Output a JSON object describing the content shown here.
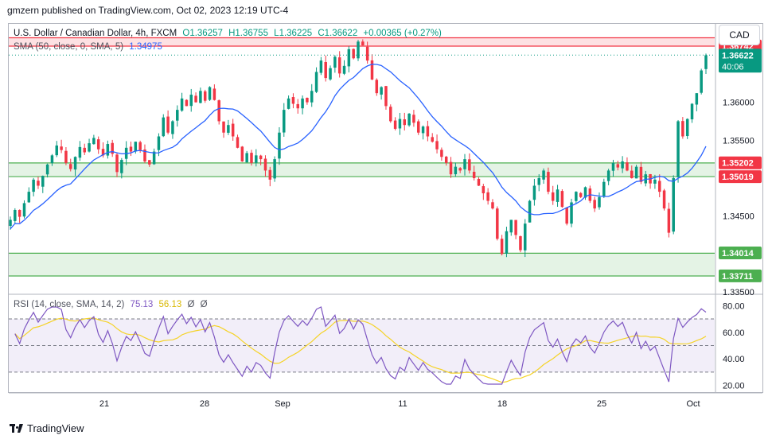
{
  "header": {
    "published_by": "gmzern published on TradingView.com, Oct 02, 2023 12:19 UTC-4"
  },
  "symbol": {
    "name": "U.S. Dollar / Canadian Dollar, 4h, FXCM",
    "open": "O1.36257",
    "high": "H1.36755",
    "low": "L1.36225",
    "close": "C1.36622",
    "change": "+0.00365 (+0.27%)"
  },
  "sma_legend": {
    "label": "SMA (50, close, 0, SMA, 5)",
    "value": "1.34975"
  },
  "rsi_legend": {
    "label": "RSI (14, close, SMA, 14, 2)",
    "rsi": "75.13",
    "sma": "56.13",
    "extra1": "Ø",
    "extra2": "Ø"
  },
  "currency_button": "CAD",
  "footer": {
    "brand": "TradingView"
  },
  "colors": {
    "up": "#089981",
    "down": "#f23645",
    "sma": "#2962ff",
    "rsi": "#7e57c2",
    "rsi_sma": "#f5d327",
    "resistance": "#f23645",
    "support": "#4caf50"
  },
  "chart_data": [
    {
      "type": "candlestick",
      "title": "U.S. Dollar / Canadian Dollar, 4h, FXCM",
      "ylim": [
        1.335,
        1.3695
      ],
      "x_ticks": [
        "21",
        "28",
        "Sep",
        "11",
        "18",
        "25",
        "Oct"
      ],
      "y_ticks": [
        "1.34500",
        "1.35000",
        "1.35500",
        "1.36000",
        "1.33500"
      ],
      "zones": [
        {
          "kind": "resistance",
          "range": [
            1.3674,
            1.3685
          ]
        },
        {
          "kind": "support",
          "range": [
            1.3502,
            1.352
          ]
        },
        {
          "kind": "support",
          "range": [
            1.3371,
            1.3401
          ]
        }
      ],
      "price_labels": [
        {
          "text": "1.36742",
          "value": 1.36742,
          "color": "#f23645"
        },
        {
          "text": "1.36622",
          "sub": "40:06",
          "value": 1.36622,
          "color": "#089981"
        },
        {
          "text": "1.35202",
          "value": 1.35202,
          "color": "#f23645"
        },
        {
          "text": "1.35019",
          "value": 1.35019,
          "color": "#f23645"
        },
        {
          "text": "1.34014",
          "value": 1.34014,
          "color": "#4caf50"
        },
        {
          "text": "1.33711",
          "value": 1.33711,
          "color": "#4caf50"
        }
      ],
      "current_price": 1.36622,
      "close_path": [
        1.3445,
        1.3458,
        1.3449,
        1.3467,
        1.3482,
        1.3498,
        1.349,
        1.3503,
        1.3518,
        1.353,
        1.3543,
        1.3537,
        1.352,
        1.3512,
        1.3528,
        1.3541,
        1.3534,
        1.3546,
        1.3553,
        1.3538,
        1.353,
        1.3545,
        1.3532,
        1.3508,
        1.3524,
        1.354,
        1.3535,
        1.3548,
        1.3537,
        1.3522,
        1.3518,
        1.3535,
        1.3555,
        1.358,
        1.356,
        1.3575,
        1.359,
        1.3605,
        1.3595,
        1.361,
        1.36,
        1.3615,
        1.3602,
        1.362,
        1.3603,
        1.3575,
        1.356,
        1.357,
        1.3555,
        1.354,
        1.3522,
        1.3533,
        1.352,
        1.353,
        1.3525,
        1.351,
        1.3498,
        1.3525,
        1.356,
        1.359,
        1.3605,
        1.3598,
        1.3592,
        1.3605,
        1.36,
        1.3615,
        1.364,
        1.3655,
        1.3632,
        1.3645,
        1.366,
        1.3638,
        1.3648,
        1.367,
        1.3658,
        1.368,
        1.3675,
        1.3655,
        1.363,
        1.3612,
        1.362,
        1.3595,
        1.3575,
        1.3565,
        1.3578,
        1.357,
        1.3585,
        1.3573,
        1.356,
        1.3568,
        1.3555,
        1.3548,
        1.3538,
        1.3528,
        1.352,
        1.3505,
        1.3515,
        1.351,
        1.3525,
        1.351,
        1.35,
        1.349,
        1.348,
        1.347,
        1.346,
        1.342,
        1.34,
        1.343,
        1.3445,
        1.3425,
        1.3405,
        1.344,
        1.347,
        1.349,
        1.35,
        1.351,
        1.3482,
        1.347,
        1.3485,
        1.3462,
        1.344,
        1.3468,
        1.3482,
        1.3475,
        1.3488,
        1.347,
        1.346,
        1.3475,
        1.3495,
        1.351,
        1.352,
        1.3514,
        1.3522,
        1.351,
        1.35,
        1.3515,
        1.3495,
        1.3505,
        1.3493,
        1.3498,
        1.3482,
        1.346,
        1.3428,
        1.35,
        1.3575,
        1.3555,
        1.3578,
        1.3598,
        1.3612,
        1.3642,
        1.3662
      ],
      "sma": {
        "name": "SMA (50, close, 0, SMA, 5)",
        "value": 1.34975
      }
    },
    {
      "type": "line",
      "title": "RSI (14, close, SMA, 14, 2)",
      "ylim": [
        15,
        82
      ],
      "y_ticks": [
        "80.00",
        "60.00",
        "40.00",
        "20.00"
      ],
      "bands": [
        30,
        50,
        70
      ],
      "series": [
        {
          "name": "RSI",
          "last": 75.13
        },
        {
          "name": "SMA",
          "last": 56.13
        }
      ]
    }
  ]
}
